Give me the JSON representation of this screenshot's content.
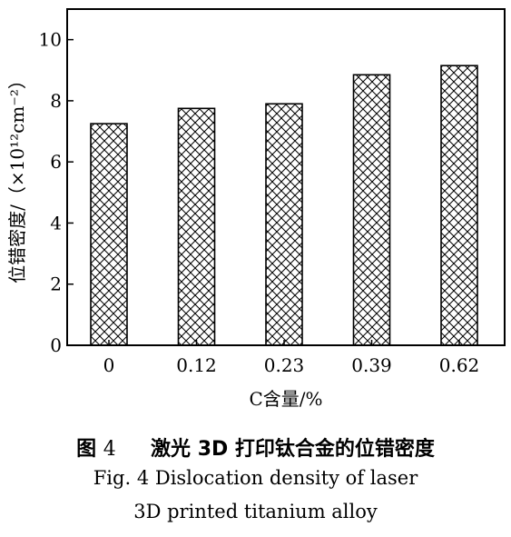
{
  "chart_data": {
    "type": "bar",
    "categories": [
      "0",
      "0.12",
      "0.23",
      "0.39",
      "0.62"
    ],
    "values": [
      7.25,
      7.75,
      7.9,
      8.85,
      9.15
    ],
    "xlabel": "C含量/%",
    "ylabel": "位错密度/（×10¹²cm⁻²）",
    "ylim": [
      0,
      11
    ],
    "yticks": [
      0,
      2,
      4,
      6,
      8,
      10
    ],
    "grid": false,
    "bar_fill": "crosshatch",
    "colors": {
      "bar_stroke": "#000000",
      "bar_fill": "#ffffff"
    }
  },
  "caption": {
    "cn_label": "图",
    "cn_number": "4",
    "cn_title": "激光 3D 打印钛合金的位错密度",
    "en_line1": "Fig. 4   Dislocation density of laser",
    "en_line2": "3D printed titanium alloy"
  }
}
